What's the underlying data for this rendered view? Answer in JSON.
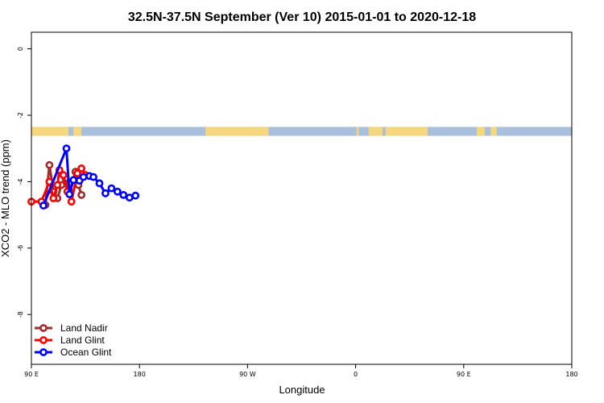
{
  "chart_data": {
    "type": "line",
    "title": "32.5N-37.5N September (Ver 10)   2015-01-01 to 2020-12-18",
    "xlabel": "Longitude",
    "ylabel": "XCO2 - MLO trend (ppm)",
    "xlim": [
      -90,
      450
    ],
    "ylim": [
      -9.5,
      0.5
    ],
    "y_reversed": true,
    "grid": false,
    "xticks": [
      {
        "value": -90,
        "label": "90 E"
      },
      {
        "value": 18,
        "label": "180"
      },
      {
        "value": 126,
        "label": "90 W"
      },
      {
        "value": 234,
        "label": "0"
      },
      {
        "value": 342,
        "label": "90 E"
      },
      {
        "value": 450,
        "label": "180"
      }
    ],
    "yticks": [
      {
        "value": 0,
        "label": "0"
      },
      {
        "value": -2,
        "label": "-2"
      },
      {
        "value": -4,
        "label": "-4"
      },
      {
        "value": -6,
        "label": "-6"
      },
      {
        "value": -8,
        "label": "-8"
      }
    ],
    "landmask_band": {
      "y_range": [
        -2.35,
        -2.62
      ],
      "land_color": "#f5d77e",
      "ocean_color": "#a9bfde",
      "land_segments": [
        [
          -90,
          -53
        ],
        [
          -48,
          -40
        ],
        [
          84,
          147
        ],
        [
          235,
          237
        ],
        [
          247,
          261
        ],
        [
          264,
          306
        ],
        [
          355,
          363
        ],
        [
          369,
          375
        ]
      ]
    },
    "series": [
      {
        "name": "Land Nadir",
        "color": "#a52a2a",
        "x": [
          -76,
          -72,
          -68,
          -64,
          -60,
          -56,
          -52,
          -46,
          -43,
          -40
        ],
        "values": [
          -4.7,
          -3.5,
          -4.3,
          -4.5,
          -4.1,
          -3.9,
          -4.3,
          -3.7,
          -4.1,
          -4.4
        ]
      },
      {
        "name": "Land Glint",
        "color": "#ff0000",
        "x": [
          -90,
          -80,
          -72,
          -68,
          -64,
          -62,
          -58,
          -54,
          -50,
          -44,
          -40,
          -36
        ],
        "values": [
          -4.6,
          -4.6,
          -4.0,
          -4.5,
          -4.1,
          -3.65,
          -3.8,
          -4.3,
          -4.6,
          -3.75,
          -3.6,
          -3.8
        ]
      },
      {
        "name": "Ocean Glint",
        "color": "#0000ff",
        "x": [
          -78,
          -55,
          -52,
          -48,
          -42,
          -38,
          -32,
          -28,
          -22,
          -16,
          -10,
          -4,
          2,
          8,
          14
        ],
        "values": [
          -4.72,
          -3.0,
          -4.38,
          -3.95,
          -3.97,
          -3.86,
          -3.83,
          -3.86,
          -4.05,
          -4.35,
          -4.2,
          -4.3,
          -4.4,
          -4.48,
          -4.42
        ]
      }
    ],
    "legend": {
      "position": "bottom-left",
      "entries": [
        "Land Nadir",
        "Land Glint",
        "Ocean Glint"
      ]
    }
  }
}
